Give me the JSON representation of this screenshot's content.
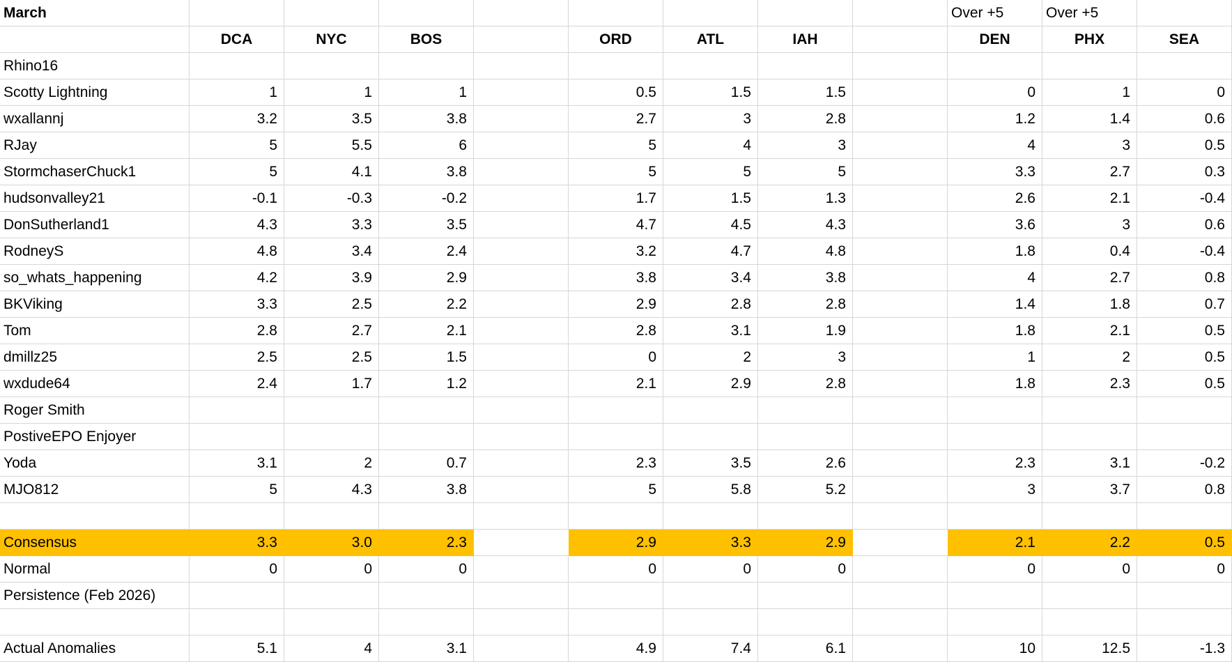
{
  "sheet": {
    "month_label": "March",
    "over_plus5_labels": [
      "Over +5",
      "Over +5"
    ],
    "columns": {
      "group1": [
        "DCA",
        "NYC",
        "BOS"
      ],
      "group2": [
        "ORD",
        "ATL",
        "IAH"
      ],
      "group3": [
        "DEN",
        "PHX",
        "SEA"
      ]
    },
    "colors": {
      "highlight": "#FFC000",
      "gridline": "#D6D6D6",
      "text": "#000000",
      "background": "#FFFFFF"
    },
    "rows": [
      {
        "name": "Rhino16",
        "values": [
          "",
          "",
          "",
          "",
          "",
          "",
          "",
          "",
          ""
        ]
      },
      {
        "name": "Scotty Lightning",
        "values": [
          "1",
          "1",
          "1",
          "0.5",
          "1.5",
          "1.5",
          "0",
          "1",
          "0"
        ]
      },
      {
        "name": "wxallannj",
        "values": [
          "3.2",
          "3.5",
          "3.8",
          "2.7",
          "3",
          "2.8",
          "1.2",
          "1.4",
          "0.6"
        ]
      },
      {
        "name": "RJay",
        "values": [
          "5",
          "5.5",
          "6",
          "5",
          "4",
          "3",
          "4",
          "3",
          "0.5"
        ]
      },
      {
        "name": "StormchaserChuck1",
        "values": [
          "5",
          "4.1",
          "3.8",
          "5",
          "5",
          "5",
          "3.3",
          "2.7",
          "0.3"
        ]
      },
      {
        "name": "hudsonvalley21",
        "values": [
          "-0.1",
          "-0.3",
          "-0.2",
          "1.7",
          "1.5",
          "1.3",
          "2.6",
          "2.1",
          "-0.4"
        ]
      },
      {
        "name": "DonSutherland1",
        "values": [
          "4.3",
          "3.3",
          "3.5",
          "4.7",
          "4.5",
          "4.3",
          "3.6",
          "3",
          "0.6"
        ]
      },
      {
        "name": "RodneyS",
        "values": [
          "4.8",
          "3.4",
          "2.4",
          "3.2",
          "4.7",
          "4.8",
          "1.8",
          "0.4",
          "-0.4"
        ]
      },
      {
        "name": "so_whats_happening",
        "values": [
          "4.2",
          "3.9",
          "2.9",
          "3.8",
          "3.4",
          "3.8",
          "4",
          "2.7",
          "0.8"
        ]
      },
      {
        "name": "BKViking",
        "values": [
          "3.3",
          "2.5",
          "2.2",
          "2.9",
          "2.8",
          "2.8",
          "1.4",
          "1.8",
          "0.7"
        ]
      },
      {
        "name": "Tom",
        "values": [
          "2.8",
          "2.7",
          "2.1",
          "2.8",
          "3.1",
          "1.9",
          "1.8",
          "2.1",
          "0.5"
        ]
      },
      {
        "name": "dmillz25",
        "values": [
          "2.5",
          "2.5",
          "1.5",
          "0",
          "2",
          "3",
          "1",
          "2",
          "0.5"
        ]
      },
      {
        "name": "wxdude64",
        "values": [
          "2.4",
          "1.7",
          "1.2",
          "2.1",
          "2.9",
          "2.8",
          "1.8",
          "2.3",
          "0.5"
        ]
      },
      {
        "name": "Roger Smith",
        "values": [
          "",
          "",
          "",
          "",
          "",
          "",
          "",
          "",
          ""
        ]
      },
      {
        "name": "PostiveEPO Enjoyer",
        "values": [
          "",
          "",
          "",
          "",
          "",
          "",
          "",
          "",
          ""
        ]
      },
      {
        "name": "Yoda",
        "values": [
          "3.1",
          "2",
          "0.7",
          "2.3",
          "3.5",
          "2.6",
          "2.3",
          "3.1",
          "-0.2"
        ]
      },
      {
        "name": "MJO812",
        "values": [
          "5",
          "4.3",
          "3.8",
          "5",
          "5.8",
          "5.2",
          "3",
          "3.7",
          "0.8"
        ]
      },
      {
        "name": "",
        "values": [
          "",
          "",
          "",
          "",
          "",
          "",
          "",
          "",
          ""
        ]
      },
      {
        "name": "Consensus",
        "highlight": true,
        "values": [
          "3.3",
          "3.0",
          "2.3",
          "2.9",
          "3.3",
          "2.9",
          "2.1",
          "2.2",
          "0.5"
        ]
      },
      {
        "name": "Normal",
        "values": [
          "0",
          "0",
          "0",
          "0",
          "0",
          "0",
          "0",
          "0",
          "0"
        ]
      },
      {
        "name": "Persistence (Feb 2026)",
        "values": [
          "",
          "",
          "",
          "",
          "",
          "",
          "",
          "",
          ""
        ]
      },
      {
        "name": "",
        "values": [
          "",
          "",
          "",
          "",
          "",
          "",
          "",
          "",
          ""
        ]
      },
      {
        "name": "Actual Anomalies",
        "values": [
          "5.1",
          "4",
          "3.1",
          "4.9",
          "7.4",
          "6.1",
          "10",
          "12.5",
          "-1.3"
        ]
      }
    ]
  }
}
